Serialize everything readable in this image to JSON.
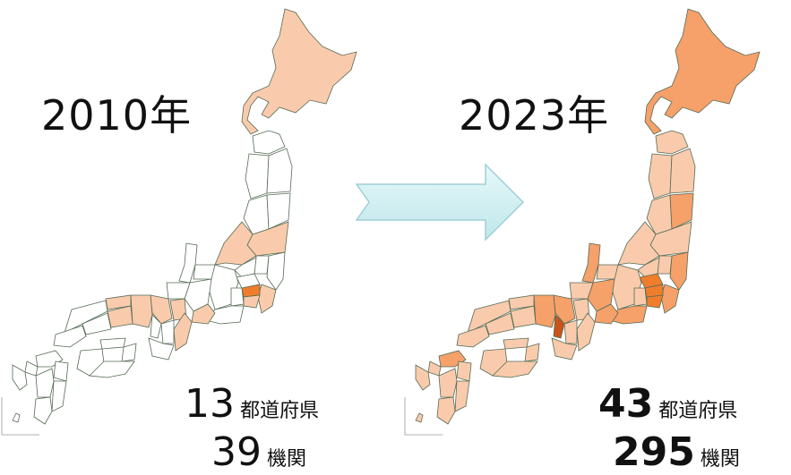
{
  "left_panel": {
    "year": "2010年",
    "prefecture_count": "13",
    "prefecture_unit": "都道府県",
    "institution_count": "39",
    "institution_unit": "機関"
  },
  "right_panel": {
    "year": "2023年",
    "prefecture_count": "43",
    "prefecture_unit": "都道府県",
    "institution_count": "295",
    "institution_unit": "機関"
  },
  "colors": {
    "light": "#f9cbac",
    "medium": "#f6a06a",
    "dark": "#f07d2c",
    "darkest": "#c9531a",
    "none": "#ffffff",
    "arrow_fill": "#cdeef0",
    "arrow_edge": "#9fcfd6",
    "border": "#556b55"
  }
}
